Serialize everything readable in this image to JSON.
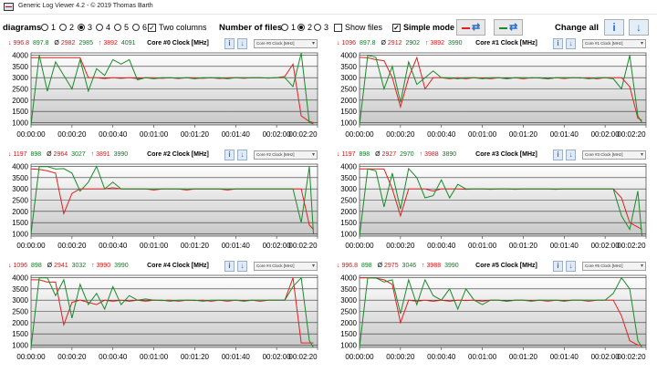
{
  "window": {
    "title": "Generic Log Viewer 4.2 - © 2019 Thomas Barth"
  },
  "toolbar": {
    "diagrams_label": "diagrams",
    "diagram_options": [
      "1",
      "2",
      "3",
      "4",
      "5",
      "6"
    ],
    "diagram_selected": "3",
    "two_columns_label": "Two columns",
    "two_columns_checked": true,
    "files_label": "Number of files",
    "file_options": [
      "1",
      "2",
      "3"
    ],
    "file_selected": "2",
    "show_files_label": "Show files",
    "show_files_checked": false,
    "simple_mode_label": "Simple mode",
    "simple_mode_checked": true,
    "change_all_label": "Change all",
    "file1_color": "#e02020",
    "file2_color": "#1a8a2a"
  },
  "axis": {
    "y_ticks": [
      "4000",
      "3500",
      "3000",
      "2500",
      "2000",
      "1500",
      "1000"
    ],
    "x_ticks": [
      "00:00:00",
      "00:00:20",
      "00:00:40",
      "00:01:00",
      "00:01:20",
      "00:01:40",
      "00:02:00",
      "00:02:20"
    ]
  },
  "panels": [
    {
      "title": "Core #0 Clock [MHz]",
      "select": "Core #0 Clock [MHz]",
      "red": {
        "min": "996.8",
        "avg": "2982",
        "max": "3892"
      },
      "green": {
        "min": "897.8",
        "avg": "2985",
        "max": "4091"
      }
    },
    {
      "title": "Core #1 Clock [MHz]",
      "select": "Core #1 Clock [MHz]",
      "red": {
        "min": "1096",
        "avg": "2912",
        "max": "3892"
      },
      "green": {
        "min": "897.8",
        "avg": "2902",
        "max": "3990"
      }
    },
    {
      "title": "Core #2 Clock [MHz]",
      "select": "Core #2 Clock [MHz]",
      "red": {
        "min": "1197",
        "avg": "2964",
        "max": "3891"
      },
      "green": {
        "min": "898",
        "avg": "3027",
        "max": "3990"
      }
    },
    {
      "title": "Core #3 Clock [MHz]",
      "select": "Core #3 Clock [MHz]",
      "red": {
        "min": "1197",
        "avg": "2927",
        "max": "3988"
      },
      "green": {
        "min": "898",
        "avg": "2970",
        "max": "3890"
      }
    },
    {
      "title": "Core #4 Clock [MHz]",
      "select": "Core #4 Clock [MHz]",
      "red": {
        "min": "1096",
        "avg": "2941",
        "max": "3990"
      },
      "green": {
        "min": "898",
        "avg": "3032",
        "max": "3990"
      }
    },
    {
      "title": "Core #5 Clock [MHz]",
      "select": "Core #5 Clock [MHz]",
      "red": {
        "min": "996.8",
        "avg": "2975",
        "max": "3988"
      },
      "green": {
        "min": "898",
        "avg": "3046",
        "max": "3990"
      }
    }
  ],
  "chart_data": {
    "type": "line",
    "xlabel": "",
    "ylabel": "",
    "ylim": [
      900,
      4100
    ],
    "x": [
      0,
      4,
      8,
      12,
      16,
      20,
      24,
      28,
      32,
      36,
      40,
      44,
      48,
      52,
      56,
      60,
      64,
      68,
      72,
      76,
      80,
      84,
      88,
      92,
      96,
      100,
      104,
      108,
      112,
      116,
      120,
      124,
      128,
      132,
      136,
      138
    ],
    "panels": [
      {
        "series": [
          {
            "color": "#e02020",
            "values": [
              3890,
              3890,
              3890,
              3890,
              3890,
              3890,
              3890,
              3000,
              3000,
              2960,
              3000,
              2970,
              3000,
              2960,
              3000,
              2990,
              2970,
              3000,
              2960,
              3000,
              2990,
              2970,
              3000,
              2960,
              2990,
              3000,
              2970,
              3000,
              2990,
              2980,
              3000,
              3050,
              3600,
              1300,
              1050,
              1000
            ]
          },
          {
            "color": "#1a8a2a",
            "values": [
              900,
              4000,
              2400,
              3700,
              3100,
              2500,
              3800,
              2400,
              3400,
              3100,
              3800,
              3600,
              3800,
              2900,
              3000,
              2950,
              3000,
              2990,
              2980,
              3000,
              2950,
              3000,
              2990,
              3000,
              2950,
              3000,
              3000,
              2990,
              3000,
              2980,
              3000,
              3000,
              2600,
              4090,
              1000,
              950
            ]
          }
        ]
      },
      {
        "series": [
          {
            "color": "#e02020",
            "values": [
              3900,
              3880,
              3800,
              3750,
              3000,
              1700,
              3000,
              3890,
              2500,
              3000,
              3000,
              2950,
              3000,
              2950,
              3000,
              2980,
              2950,
              3000,
              2960,
              3000,
              2950,
              3000,
              2980,
              2950,
              3000,
              2960,
              3000,
              2980,
              3000,
              2950,
              3000,
              3000,
              3000,
              2600,
              1200,
              1100
            ]
          },
          {
            "color": "#1a8a2a",
            "values": [
              900,
              3990,
              3900,
              2500,
              3500,
              1900,
              3700,
              2700,
              3000,
              3300,
              3000,
              3000,
              2950,
              3000,
              3000,
              2950,
              3000,
              3000,
              2950,
              3000,
              3000,
              2980,
              3000,
              2950,
              3000,
              3000,
              2990,
              3000,
              2950,
              3000,
              3000,
              2950,
              2500,
              3990,
              1300,
              1000
            ]
          }
        ]
      },
      {
        "series": [
          {
            "color": "#e02020",
            "values": [
              3890,
              3870,
              3800,
              3700,
              1900,
              2800,
              3000,
              3000,
              3000,
              3000,
              3050,
              3000,
              3000,
              3000,
              3000,
              2950,
              3000,
              3000,
              3000,
              2950,
              3000,
              3000,
              3000,
              3000,
              2950,
              3000,
              3000,
              3000,
              3000,
              3000,
              3000,
              3000,
              3000,
              3000,
              1400,
              1200
            ]
          },
          {
            "color": "#1a8a2a",
            "values": [
              1000,
              3990,
              3990,
              3880,
              3900,
              3700,
              2900,
              3300,
              4000,
              3000,
              3300,
              3000,
              3000,
              3000,
              3000,
              3000,
              3000,
              3000,
              3000,
              3000,
              3000,
              3000,
              3000,
              3000,
              3000,
              3000,
              3000,
              3000,
              3000,
              3000,
              3000,
              3000,
              3000,
              1500,
              3990,
              1000
            ]
          }
        ]
      },
      {
        "series": [
          {
            "color": "#e02020",
            "values": [
              3890,
              3890,
              3890,
              3880,
              3000,
              1800,
              3000,
              3000,
              3000,
              2900,
              3000,
              3000,
              3000,
              2980,
              3000,
              3000,
              2980,
              3000,
              3000,
              2980,
              3000,
              3000,
              3000,
              3000,
              2980,
              3000,
              3000,
              3000,
              3000,
              3000,
              3000,
              3000,
              2600,
              1500,
              1300,
              1200
            ]
          },
          {
            "color": "#1a8a2a",
            "values": [
              900,
              3890,
              3800,
              2200,
              3700,
              2100,
              3900,
              3500,
              2600,
              2700,
              3400,
              2600,
              3200,
              3000,
              3000,
              3000,
              3000,
              3000,
              3000,
              3000,
              3000,
              3000,
              3000,
              3000,
              3000,
              3000,
              3000,
              3000,
              3000,
              3000,
              3000,
              3000,
              1800,
              1200,
              2900,
              900
            ]
          }
        ]
      },
      {
        "series": [
          {
            "color": "#e02020",
            "values": [
              3900,
              3900,
              3800,
              3800,
              1900,
              2900,
              3000,
              2900,
              2800,
              3000,
              2950,
              3000,
              2950,
              3000,
              2950,
              3000,
              2980,
              3000,
              2950,
              3000,
              2980,
              3000,
              2950,
              3000,
              2950,
              3000,
              2980,
              3000,
              2950,
              3000,
              3000,
              3000,
              3990,
              1100,
              1100,
              1100
            ]
          },
          {
            "color": "#1a8a2a",
            "values": [
              900,
              3990,
              3990,
              3200,
              3900,
              2200,
              3700,
              2800,
              3300,
              2600,
              3600,
              2800,
              3200,
              3000,
              3050,
              3000,
              3000,
              2950,
              3000,
              3000,
              3000,
              2950,
              3000,
              3000,
              3000,
              3000,
              2950,
              3000,
              3000,
              3000,
              3000,
              3000,
              3600,
              3990,
              1200,
              900
            ]
          }
        ]
      },
      {
        "series": [
          {
            "color": "#e02020",
            "values": [
              3990,
              3990,
              3980,
              3900,
              3700,
              2000,
              3000,
              2950,
              3000,
              2950,
              3000,
              2950,
              3000,
              2980,
              3000,
              2950,
              3000,
              3000,
              2950,
              3000,
              3000,
              2980,
              3000,
              2950,
              3000,
              2980,
              3000,
              3000,
              2950,
              3000,
              3000,
              3000,
              2300,
              1200,
              1000,
              1000
            ]
          },
          {
            "color": "#1a8a2a",
            "values": [
              900,
              3990,
              3990,
              3800,
              3900,
              2400,
              3900,
              2800,
              3900,
              3200,
              3000,
              3500,
              2600,
              3500,
              3000,
              2800,
              3000,
              3000,
              2950,
              3000,
              3000,
              2950,
              3000,
              3000,
              3000,
              2950,
              3000,
              3000,
              3000,
              3000,
              3000,
              3300,
              3990,
              3500,
              1200,
              900
            ]
          }
        ]
      }
    ]
  }
}
